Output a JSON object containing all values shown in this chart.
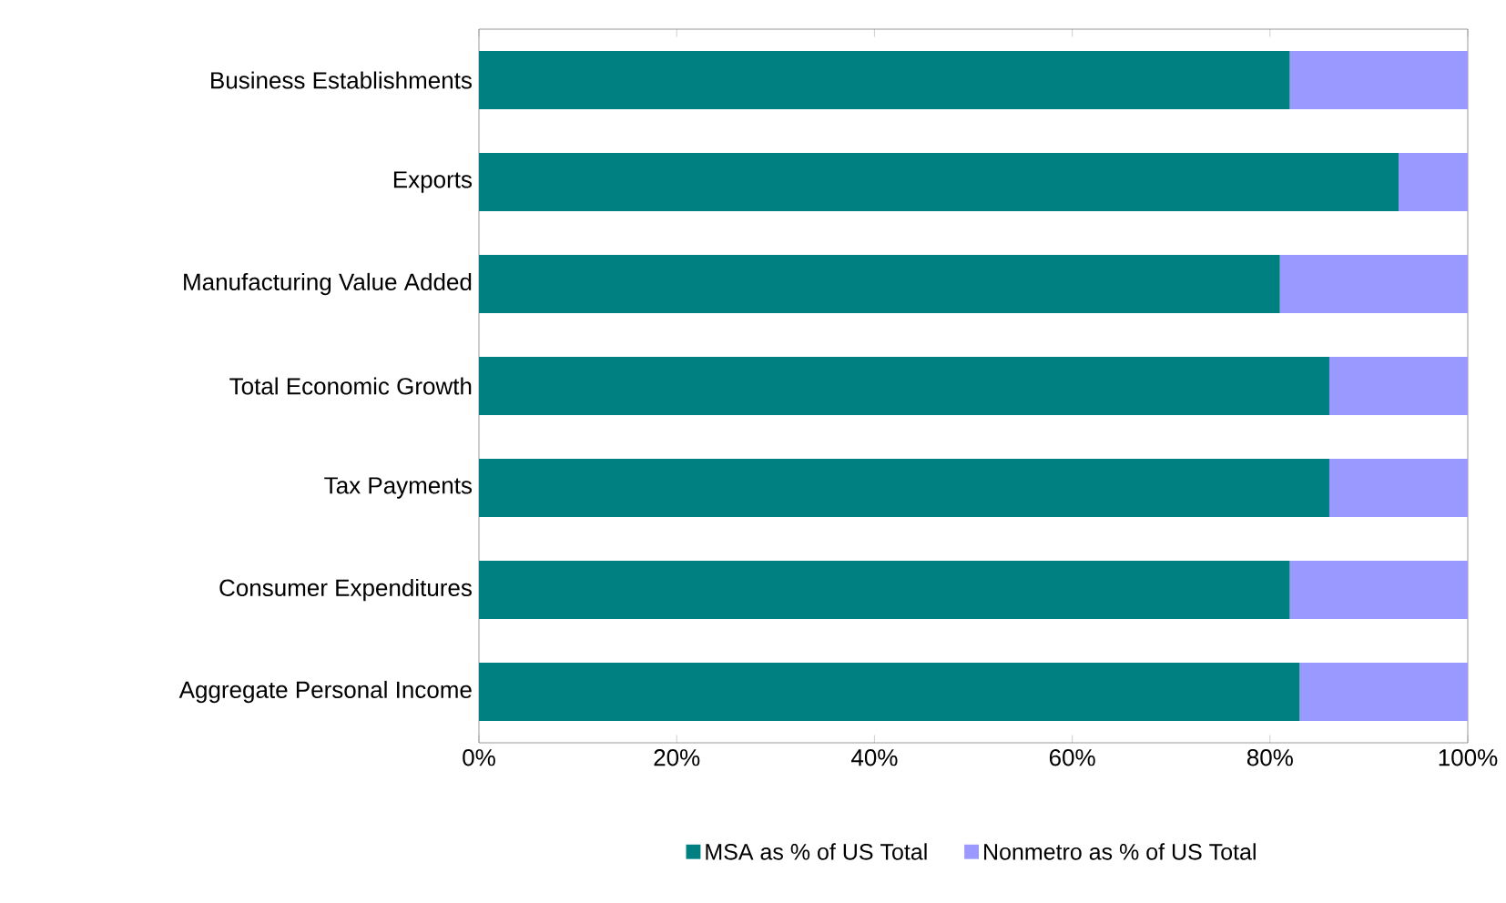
{
  "chart_data": {
    "type": "bar",
    "orientation": "horizontal",
    "stacked": true,
    "categories": [
      "Business Establishments",
      "Exports",
      "Manufacturing Value Added",
      "Total Economic Growth",
      "Tax Payments",
      "Consumer Expenditures",
      "Aggregate Personal Income"
    ],
    "series": [
      {
        "name": "MSA as % of US Total",
        "color": "#008080",
        "values": [
          82,
          93,
          81,
          86,
          86,
          82,
          83
        ]
      },
      {
        "name": "Nonmetro as % of US Total",
        "color": "#9999ff",
        "values": [
          18,
          7,
          19,
          14,
          14,
          18,
          17
        ]
      }
    ],
    "xlim": [
      0,
      100
    ],
    "xticks": [
      {
        "value": 0,
        "label": "0%"
      },
      {
        "value": 20,
        "label": "20%"
      },
      {
        "value": 40,
        "label": "40%"
      },
      {
        "value": 60,
        "label": "60%"
      },
      {
        "value": 80,
        "label": "80%"
      },
      {
        "value": 100,
        "label": "100%"
      }
    ],
    "grid": false,
    "legend": "bottom"
  }
}
